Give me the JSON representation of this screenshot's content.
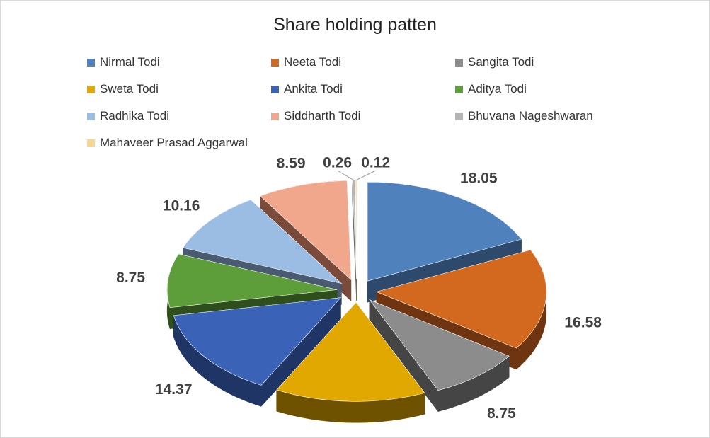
{
  "chart_data": {
    "type": "pie",
    "title": "Share holding patten",
    "legend_position": "top",
    "slices": [
      {
        "label": "Nirmal Todi",
        "value": 18.05,
        "color": "#4f81bd",
        "side": "#2d4a6d"
      },
      {
        "label": "Neeta Todi",
        "value": 16.58,
        "color": "#d2691e",
        "side": "#6e3510"
      },
      {
        "label": "Sangita Todi",
        "value": 8.75,
        "color": "#8c8c8c",
        "side": "#454545"
      },
      {
        "label": "Sweta Todi",
        "value": 14.37,
        "color": "#e0a800",
        "side": "#6e5200"
      },
      {
        "label": "Ankita Todi",
        "value": 14.37,
        "color": "#3a63b8",
        "side": "#1f3566"
      },
      {
        "label": "Aditya Todi",
        "value": 8.75,
        "color": "#5e9e3a",
        "side": "#2e4f1c"
      },
      {
        "label": "Radhika Todi",
        "value": 10.16,
        "color": "#9bbce3",
        "side": "#4a5a70"
      },
      {
        "label": "Siddharth Todi",
        "value": 8.59,
        "color": "#f0a78c",
        "side": "#7a4a3a"
      },
      {
        "label": "Bhuvana Nageshwaran",
        "value": 0.26,
        "color": "#b5b5b5",
        "side": "#6a6a6a"
      },
      {
        "label": "Mahaveer Prasad Aggarwal",
        "value": 0.12,
        "color": "#f7d58a",
        "side": "#9a8040"
      }
    ]
  }
}
